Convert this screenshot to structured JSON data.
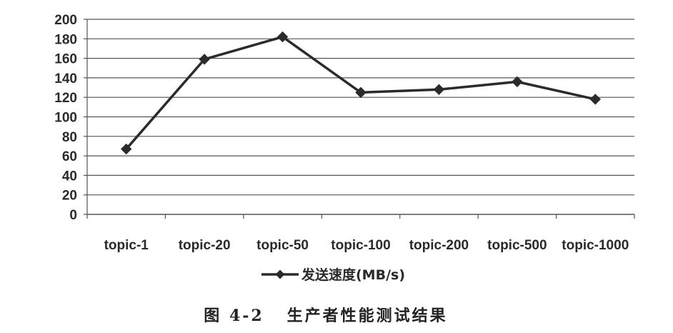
{
  "chart_data": {
    "type": "line",
    "categories": [
      "topic-1",
      "topic-20",
      "topic-50",
      "topic-100",
      "topic-200",
      "topic-500",
      "topic-1000"
    ],
    "series": [
      {
        "name": "发送速度(MB/s)",
        "values": [
          67,
          159,
          182,
          125,
          128,
          136,
          118
        ]
      }
    ],
    "ylim": [
      0,
      200
    ],
    "yticks": [
      0,
      20,
      40,
      60,
      80,
      100,
      120,
      140,
      160,
      180,
      200
    ],
    "grid": true,
    "legend_position": "bottom",
    "line_color": "#2b2b2b",
    "grid_color": "#555555",
    "caption": "图 4-2   生产者性能测试结果"
  }
}
